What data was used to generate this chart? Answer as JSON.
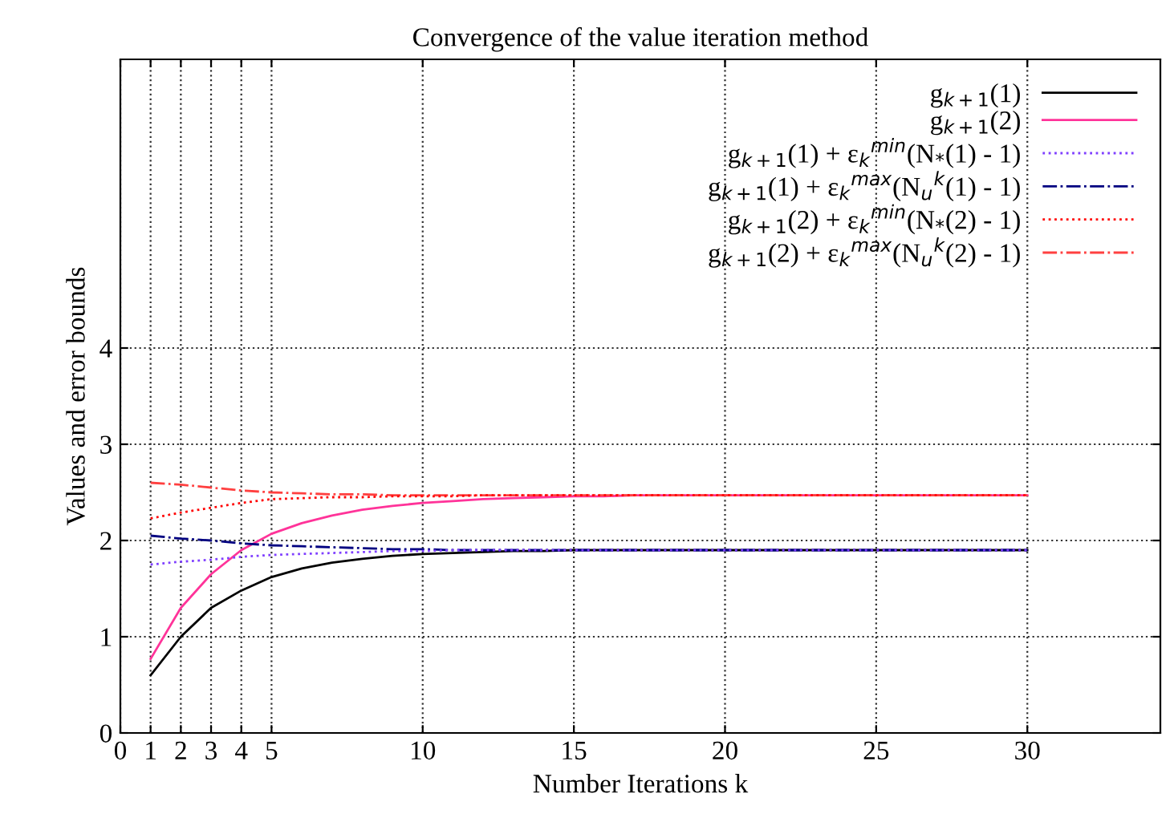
{
  "chart_data": {
    "type": "line",
    "title": "Convergence of the value iteration method",
    "xlabel": "Number Iterations k",
    "ylabel": "Values and error bounds",
    "x": [
      1,
      2,
      3,
      4,
      5,
      6,
      7,
      8,
      9,
      10,
      11,
      12,
      13,
      14,
      15,
      16,
      17,
      18,
      19,
      20,
      21,
      22,
      23,
      24,
      25,
      26,
      27,
      28,
      29,
      30
    ],
    "series": [
      {
        "name": "g$_{k+1}$(1)",
        "color": "#000000",
        "line_style": "solid",
        "values": [
          0.6,
          1.0,
          1.3,
          1.48,
          1.62,
          1.71,
          1.77,
          1.81,
          1.84,
          1.86,
          1.87,
          1.88,
          1.89,
          1.89,
          1.9,
          1.9,
          1.9,
          1.9,
          1.9,
          1.9,
          1.9,
          1.9,
          1.9,
          1.9,
          1.9,
          1.9,
          1.9,
          1.9,
          1.9,
          1.9
        ]
      },
      {
        "name": "g$_{k+1}$(2)",
        "color": "#ff3399",
        "line_style": "solid",
        "values": [
          0.77,
          1.3,
          1.65,
          1.9,
          2.07,
          2.18,
          2.26,
          2.32,
          2.36,
          2.39,
          2.41,
          2.43,
          2.44,
          2.45,
          2.46,
          2.46,
          2.47,
          2.47,
          2.47,
          2.47,
          2.47,
          2.47,
          2.47,
          2.47,
          2.47,
          2.47,
          2.47,
          2.47,
          2.47,
          2.47
        ]
      },
      {
        "name": "g$_{k+1}$(1) + ε$_{k}$$^{min}$(N$_{*}$(1) - 1)",
        "color": "#7f3fff",
        "line_style": "dotted",
        "values": [
          1.75,
          1.78,
          1.8,
          1.83,
          1.85,
          1.86,
          1.87,
          1.88,
          1.89,
          1.89,
          1.9,
          1.9,
          1.9,
          1.9,
          1.9,
          1.9,
          1.9,
          1.9,
          1.9,
          1.9,
          1.9,
          1.9,
          1.9,
          1.9,
          1.9,
          1.9,
          1.9,
          1.9,
          1.9,
          1.9
        ]
      },
      {
        "name": "g$_{k+1}$(1) + ε$_{k}$$^{max}$(N$_{u}$$^{k}$(1) - 1)",
        "color": "#000080",
        "line_style": "dashdot",
        "values": [
          2.05,
          2.02,
          2.0,
          1.97,
          1.95,
          1.94,
          1.93,
          1.92,
          1.91,
          1.91,
          1.9,
          1.9,
          1.9,
          1.9,
          1.9,
          1.9,
          1.9,
          1.9,
          1.9,
          1.9,
          1.9,
          1.9,
          1.9,
          1.9,
          1.9,
          1.9,
          1.9,
          1.9,
          1.9,
          1.9
        ]
      },
      {
        "name": "g$_{k+1}$(2) + ε$_{k}$$^{min}$(N$_{*}$(2) - 1)",
        "color": "#ff0000",
        "line_style": "dotted",
        "values": [
          2.23,
          2.29,
          2.34,
          2.39,
          2.43,
          2.44,
          2.45,
          2.45,
          2.46,
          2.46,
          2.46,
          2.47,
          2.47,
          2.47,
          2.47,
          2.47,
          2.47,
          2.47,
          2.47,
          2.47,
          2.47,
          2.47,
          2.47,
          2.47,
          2.47,
          2.47,
          2.47,
          2.47,
          2.47,
          2.47
        ]
      },
      {
        "name": "g$_{k+1}$(2) + ε$_{k}$$^{max}$(N$_{u}$$^{k}$(2) - 1)",
        "color": "#ff4040",
        "line_style": "dashdot",
        "values": [
          2.6,
          2.58,
          2.55,
          2.52,
          2.5,
          2.49,
          2.48,
          2.48,
          2.47,
          2.47,
          2.47,
          2.47,
          2.47,
          2.47,
          2.47,
          2.47,
          2.47,
          2.47,
          2.47,
          2.47,
          2.47,
          2.47,
          2.47,
          2.47,
          2.47,
          2.47,
          2.47,
          2.47,
          2.47,
          2.47
        ]
      }
    ],
    "xlim": [
      0,
      34.4
    ],
    "xticks": [
      0,
      1,
      2,
      3,
      4,
      5,
      10,
      15,
      20,
      25,
      30
    ],
    "ylim": [
      0,
      7
    ],
    "yticks": [
      0,
      1,
      2,
      3,
      4
    ],
    "grid": true,
    "legend": "top right"
  }
}
